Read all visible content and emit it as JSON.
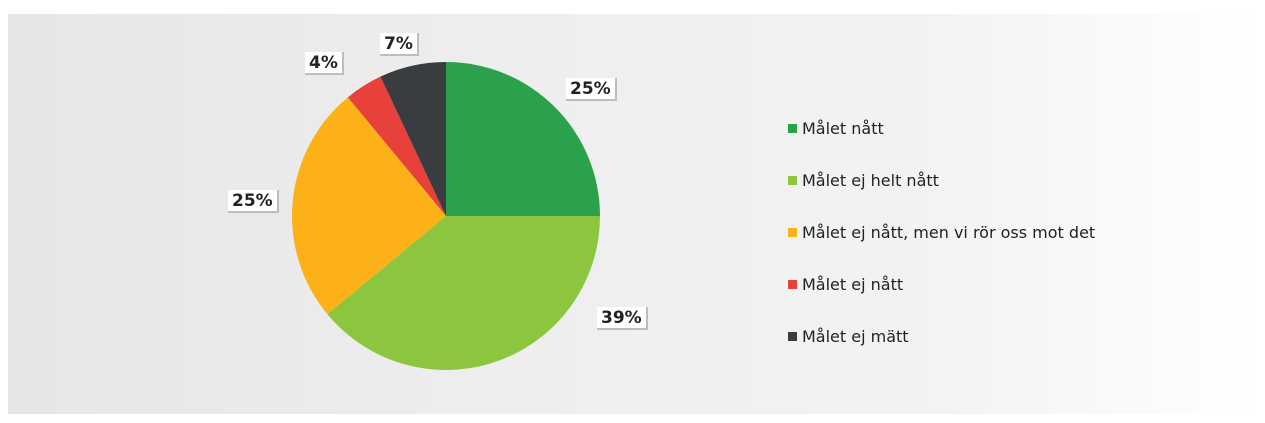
{
  "chart_data": {
    "type": "pie",
    "slices": [
      {
        "label": "Målet nått",
        "value": 25,
        "display": "25%",
        "color": "#2aa14a"
      },
      {
        "label": "Målet ej helt nått",
        "value": 39,
        "display": "39%",
        "color": "#8cc63f"
      },
      {
        "label": "Målet ej nått, men vi rör oss mot det",
        "value": 25,
        "display": "25%",
        "color": "#fbb117"
      },
      {
        "label": "Målet ej nått",
        "value": 4,
        "display": "4%",
        "color": "#e8403a"
      },
      {
        "label": "Målet ej mätt",
        "value": 7,
        "display": "7%",
        "color": "#3a3d3f"
      }
    ],
    "legend_position": "right",
    "start_angle": "12 o'clock, clockwise"
  }
}
